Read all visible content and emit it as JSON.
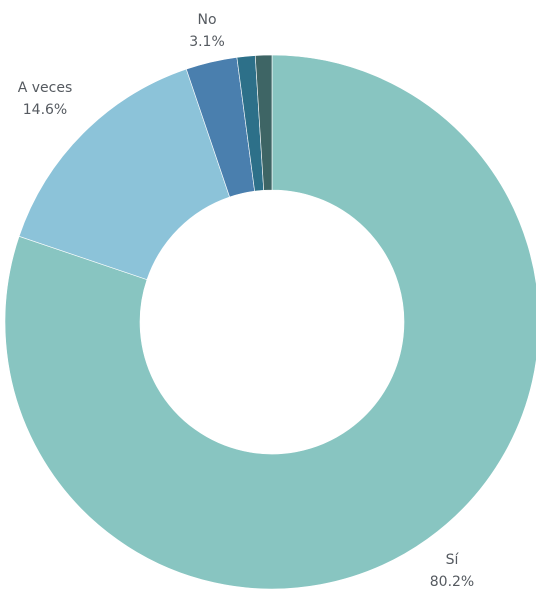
{
  "chart_data": {
    "type": "donut",
    "categories": [
      "Sí",
      "A veces",
      "No",
      null,
      null
    ],
    "values": [
      80.2,
      14.6,
      3.1,
      1.1,
      1.0
    ],
    "value_labels": [
      "80.2%",
      "14.6%",
      "3.1%",
      null,
      null
    ],
    "colors": [
      "#88c5c1",
      "#8cc3d9",
      "#4a7fae",
      "#2d7089",
      "#3e6565"
    ]
  }
}
